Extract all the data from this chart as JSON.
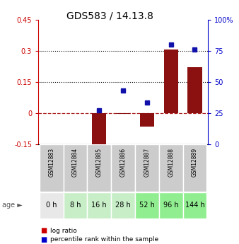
{
  "title": "GDS583 / 14.13.8",
  "samples": [
    "GSM12883",
    "GSM12884",
    "GSM12885",
    "GSM12886",
    "GSM12887",
    "GSM12888",
    "GSM12889"
  ],
  "ages": [
    "0 h",
    "8 h",
    "16 h",
    "28 h",
    "52 h",
    "96 h",
    "144 h"
  ],
  "log_ratio": [
    0.0,
    0.0,
    -0.18,
    -0.005,
    -0.065,
    0.305,
    0.22
  ],
  "percentile_rank": [
    null,
    null,
    27,
    43,
    33,
    80,
    76
  ],
  "ylim_left": [
    -0.15,
    0.45
  ],
  "ylim_right": [
    0,
    100
  ],
  "yticks_left": [
    -0.15,
    0.0,
    0.15,
    0.3,
    0.45
  ],
  "yticks_right": [
    0,
    25,
    50,
    75,
    100
  ],
  "ytick_labels_left": [
    "-0.15",
    "0",
    "0.15",
    "0.3",
    "0.45"
  ],
  "ytick_labels_right": [
    "0",
    "25",
    "50",
    "75",
    "100%"
  ],
  "hlines": [
    0.15,
    0.3
  ],
  "bar_color": "#8B1010",
  "dot_color": "#1010AA",
  "zero_line_color": "#AA2020",
  "age_bg_colors": [
    "#e8e8e8",
    "#c8eec8",
    "#c8eec8",
    "#c8eec8",
    "#90ee90",
    "#90ee90",
    "#90ee90"
  ],
  "sample_bg_color": "#cccccc",
  "bar_width": 0.6,
  "legend_marker_color_ratio": "#cc0000",
  "legend_marker_color_pct": "#0000cc",
  "age_label_left": "age ►"
}
